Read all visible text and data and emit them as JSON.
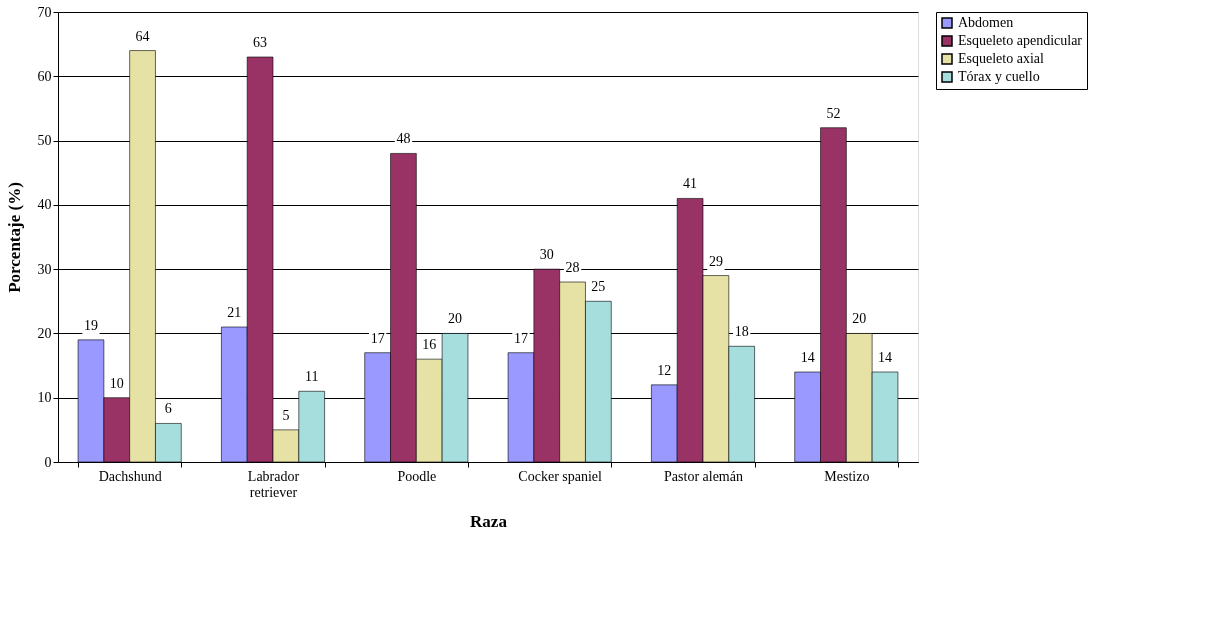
{
  "chart_data": {
    "type": "bar",
    "xlabel": "Raza",
    "ylabel": "Porcentaje (%)",
    "categories": [
      "Dachshund",
      "Labrador retriever",
      "Poodle",
      "Cocker spaniel",
      "Pastor alemán",
      "Mestizo"
    ],
    "series": [
      {
        "name": "Abdomen",
        "color": "#9999ff",
        "values": [
          19,
          21,
          17,
          17,
          12,
          14
        ]
      },
      {
        "name": "Esqueleto apendicular",
        "color": "#993366",
        "values": [
          10,
          63,
          48,
          30,
          41,
          52
        ]
      },
      {
        "name": "Esqueleto axial",
        "color": "#e6e2a6",
        "values": [
          64,
          5,
          16,
          28,
          29,
          20
        ]
      },
      {
        "name": "Tórax y cuello",
        "color": "#a6dede",
        "values": [
          6,
          11,
          20,
          25,
          18,
          14
        ]
      }
    ],
    "ylim": [
      0,
      70
    ],
    "yticks": [
      0,
      10,
      20,
      30,
      40,
      50,
      60,
      70
    ],
    "grid": "y",
    "legend": "right",
    "data_labels": true
  }
}
